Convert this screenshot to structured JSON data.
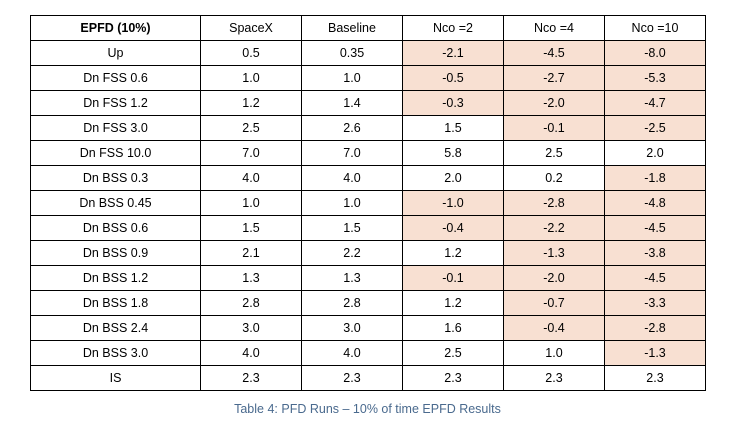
{
  "table": {
    "headers": [
      "EPFD (10%)",
      "SpaceX",
      "Baseline",
      "Nco =2",
      "Nco =4",
      "Nco =10"
    ],
    "shade_color": "#f8e0d2",
    "rows": [
      {
        "cells": [
          "Up",
          "0.5",
          "0.35",
          "-2.1",
          "-4.5",
          "-8.0"
        ],
        "shaded": [
          false,
          false,
          false,
          true,
          true,
          true
        ]
      },
      {
        "cells": [
          "Dn FSS 0.6",
          "1.0",
          "1.0",
          "-0.5",
          "-2.7",
          "-5.3"
        ],
        "shaded": [
          false,
          false,
          false,
          true,
          true,
          true
        ]
      },
      {
        "cells": [
          "Dn FSS 1.2",
          "1.2",
          "1.4",
          "-0.3",
          "-2.0",
          "-4.7"
        ],
        "shaded": [
          false,
          false,
          false,
          true,
          true,
          true
        ]
      },
      {
        "cells": [
          "Dn FSS 3.0",
          "2.5",
          "2.6",
          "1.5",
          "-0.1",
          "-2.5"
        ],
        "shaded": [
          false,
          false,
          false,
          false,
          true,
          true
        ]
      },
      {
        "cells": [
          "Dn FSS 10.0",
          "7.0",
          "7.0",
          "5.8",
          "2.5",
          "2.0"
        ],
        "shaded": [
          false,
          false,
          false,
          false,
          false,
          false
        ]
      },
      {
        "cells": [
          "Dn BSS 0.3",
          "4.0",
          "4.0",
          "2.0",
          "0.2",
          "-1.8"
        ],
        "shaded": [
          false,
          false,
          false,
          false,
          false,
          true
        ]
      },
      {
        "cells": [
          "Dn BSS 0.45",
          "1.0",
          "1.0",
          "-1.0",
          "-2.8",
          "-4.8"
        ],
        "shaded": [
          false,
          false,
          false,
          true,
          true,
          true
        ]
      },
      {
        "cells": [
          "Dn BSS 0.6",
          "1.5",
          "1.5",
          "-0.4",
          "-2.2",
          "-4.5"
        ],
        "shaded": [
          false,
          false,
          false,
          true,
          true,
          true
        ]
      },
      {
        "cells": [
          "Dn BSS 0.9",
          "2.1",
          "2.2",
          "1.2",
          "-1.3",
          "-3.8"
        ],
        "shaded": [
          false,
          false,
          false,
          false,
          true,
          true
        ]
      },
      {
        "cells": [
          "Dn BSS 1.2",
          "1.3",
          "1.3",
          "-0.1",
          "-2.0",
          "-4.5"
        ],
        "shaded": [
          false,
          false,
          false,
          true,
          true,
          true
        ]
      },
      {
        "cells": [
          "Dn BSS 1.8",
          "2.8",
          "2.8",
          "1.2",
          "-0.7",
          "-3.3"
        ],
        "shaded": [
          false,
          false,
          false,
          false,
          true,
          true
        ]
      },
      {
        "cells": [
          "Dn BSS 2.4",
          "3.0",
          "3.0",
          "1.6",
          "-0.4",
          "-2.8"
        ],
        "shaded": [
          false,
          false,
          false,
          false,
          true,
          true
        ]
      },
      {
        "cells": [
          "Dn BSS 3.0",
          "4.0",
          "4.0",
          "2.5",
          "1.0",
          "-1.3"
        ],
        "shaded": [
          false,
          false,
          false,
          false,
          false,
          true
        ]
      },
      {
        "cells": [
          "IS",
          "2.3",
          "2.3",
          "2.3",
          "2.3",
          "2.3"
        ],
        "shaded": [
          false,
          false,
          false,
          false,
          false,
          false
        ]
      }
    ]
  },
  "caption": "Table 4: PFD Runs – 10% of time EPFD Results"
}
